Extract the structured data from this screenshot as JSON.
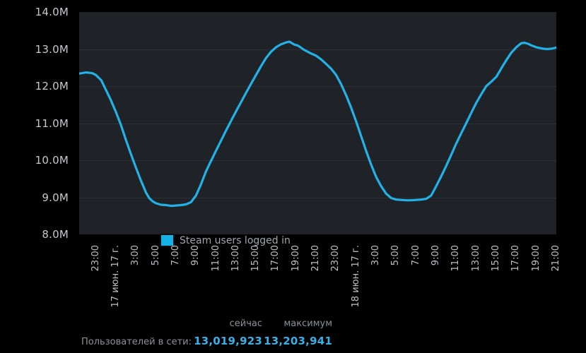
{
  "page": {
    "background": "#000000"
  },
  "chart": {
    "legend_label": "Steam users logged in",
    "legend_swatch_color": "#14b2e4",
    "line_color": "#23b2e8",
    "plot_bg": "#1f2327",
    "gridline_color": "#2c3136",
    "y_axis_labels": [
      "14.0M",
      "13.0M",
      "12.0M",
      "11.0M",
      "10.0M",
      "9.0M",
      "8.0M"
    ],
    "x_axis_labels": [
      "23:00",
      "17 июн. 17 г.",
      "3:00",
      "5:00",
      "7:00",
      "9:00",
      "11:00",
      "13:00",
      "15:00",
      "17:00",
      "19:00",
      "21:00",
      "23:00",
      "18 июн. 17 г.",
      "3:00",
      "5:00",
      "7:00",
      "9:00",
      "11:00",
      "13:00",
      "15:00",
      "17:00",
      "19:00",
      "21:00"
    ]
  },
  "chart_data": {
    "type": "line",
    "title": "",
    "xlabel": "",
    "ylabel": "",
    "y_unit": "M users",
    "ylim": [
      8,
      14
    ],
    "x_hours_range": [
      0,
      47.667
    ],
    "x_tick_start_hour": 1.667,
    "x_tick_step_hours": 2,
    "grid": "horizontal",
    "legend_position": "bottom-left-inside",
    "series": [
      {
        "name": "Steam users logged in",
        "color": "#23b2e8",
        "points": [
          [
            0,
            12.34
          ],
          [
            0.7,
            12.37
          ],
          [
            1.3,
            12.35
          ],
          [
            1.67,
            12.3
          ],
          [
            2.2,
            12.16
          ],
          [
            2.67,
            11.9
          ],
          [
            3.17,
            11.62
          ],
          [
            3.67,
            11.3
          ],
          [
            4.17,
            10.95
          ],
          [
            4.67,
            10.55
          ],
          [
            5.17,
            10.17
          ],
          [
            5.67,
            9.8
          ],
          [
            6.17,
            9.45
          ],
          [
            6.67,
            9.13
          ],
          [
            7.0,
            8.98
          ],
          [
            7.3,
            8.9
          ],
          [
            7.67,
            8.84
          ],
          [
            8.17,
            8.8
          ],
          [
            8.67,
            8.79
          ],
          [
            9.17,
            8.77
          ],
          [
            9.67,
            8.78
          ],
          [
            10.17,
            8.79
          ],
          [
            10.67,
            8.81
          ],
          [
            11.17,
            8.87
          ],
          [
            11.67,
            9.05
          ],
          [
            12.17,
            9.35
          ],
          [
            12.67,
            9.7
          ],
          [
            13.17,
            9.98
          ],
          [
            13.67,
            10.26
          ],
          [
            14.17,
            10.53
          ],
          [
            14.67,
            10.8
          ],
          [
            15.17,
            11.06
          ],
          [
            15.67,
            11.32
          ],
          [
            16.17,
            11.57
          ],
          [
            16.67,
            11.82
          ],
          [
            17.17,
            12.06
          ],
          [
            17.67,
            12.3
          ],
          [
            18.17,
            12.54
          ],
          [
            18.67,
            12.76
          ],
          [
            19.17,
            12.93
          ],
          [
            19.67,
            13.05
          ],
          [
            20.17,
            13.13
          ],
          [
            20.67,
            13.18
          ],
          [
            21.0,
            13.2
          ],
          [
            21.2,
            13.17
          ],
          [
            21.5,
            13.12
          ],
          [
            21.8,
            13.1
          ],
          [
            22.1,
            13.05
          ],
          [
            22.4,
            12.99
          ],
          [
            22.67,
            12.95
          ],
          [
            23.17,
            12.88
          ],
          [
            23.67,
            12.82
          ],
          [
            24.17,
            12.72
          ],
          [
            24.67,
            12.6
          ],
          [
            25.17,
            12.47
          ],
          [
            25.67,
            12.3
          ],
          [
            26.17,
            12.05
          ],
          [
            26.67,
            11.75
          ],
          [
            27.17,
            11.42
          ],
          [
            27.67,
            11.05
          ],
          [
            28.17,
            10.65
          ],
          [
            28.67,
            10.25
          ],
          [
            29.17,
            9.88
          ],
          [
            29.67,
            9.55
          ],
          [
            30.17,
            9.3
          ],
          [
            30.67,
            9.1
          ],
          [
            31.17,
            8.98
          ],
          [
            31.67,
            8.94
          ],
          [
            32.17,
            8.93
          ],
          [
            32.67,
            8.92
          ],
          [
            33.17,
            8.92
          ],
          [
            33.67,
            8.93
          ],
          [
            34.17,
            8.94
          ],
          [
            34.67,
            8.96
          ],
          [
            35.17,
            9.05
          ],
          [
            35.67,
            9.3
          ],
          [
            36.17,
            9.57
          ],
          [
            36.67,
            9.85
          ],
          [
            37.17,
            10.15
          ],
          [
            37.67,
            10.45
          ],
          [
            38.17,
            10.73
          ],
          [
            38.67,
            11.0
          ],
          [
            39.17,
            11.28
          ],
          [
            39.67,
            11.55
          ],
          [
            40.17,
            11.78
          ],
          [
            40.67,
            12.0
          ],
          [
            41.17,
            12.12
          ],
          [
            41.67,
            12.25
          ],
          [
            42.17,
            12.48
          ],
          [
            42.67,
            12.7
          ],
          [
            43.17,
            12.9
          ],
          [
            43.67,
            13.05
          ],
          [
            44.17,
            13.16
          ],
          [
            44.5,
            13.17
          ],
          [
            44.87,
            13.14
          ],
          [
            45.17,
            13.1
          ],
          [
            45.67,
            13.05
          ],
          [
            46.17,
            13.02
          ],
          [
            46.67,
            13.0
          ],
          [
            47.17,
            13.01
          ],
          [
            47.67,
            13.04
          ]
        ]
      }
    ]
  },
  "stats": {
    "header_now": "сейчас",
    "header_max": "максимум",
    "row_label": "Пользователей в сети:",
    "now_value": "13,019,923",
    "max_value": "13,203,941",
    "value_color": "#38b0e8"
  }
}
